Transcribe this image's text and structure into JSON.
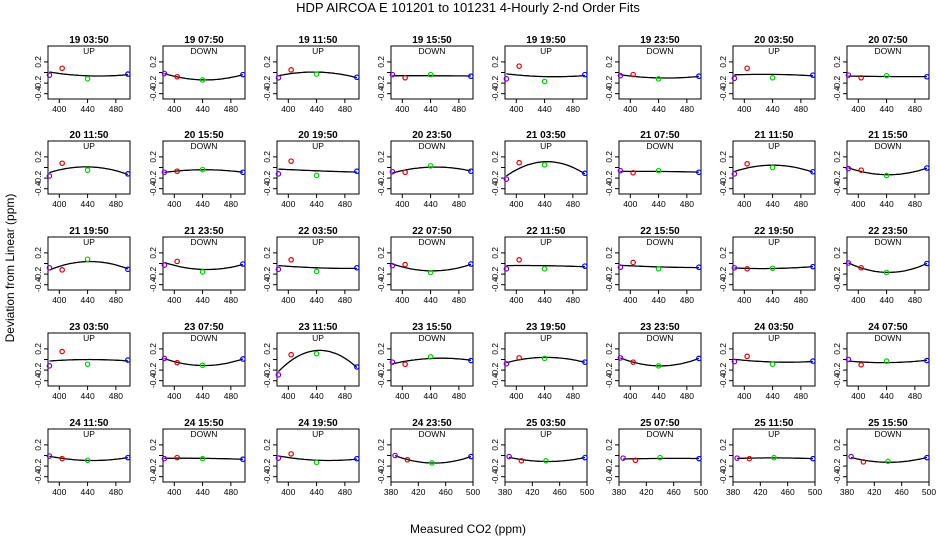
{
  "chart_data": {
    "type": "scatter",
    "title": "HDP   AIRCOA E   101201 to 101231   4-Hourly 2-nd Order Fits",
    "xlabel": "Measured CO2 (ppm)",
    "ylabel": "Deviation from Linear (ppm)",
    "ylim": [
      -0.5,
      0.5
    ],
    "y_ticks": [
      "0.2",
      "-0.2",
      "-0.4"
    ],
    "x_ticks_short": [
      "400",
      "440",
      "480"
    ],
    "x_ticks_long": [
      "380",
      "420",
      "460",
      "500"
    ],
    "point_colors": {
      "p1": "#7b00d4",
      "p2": "#e00000",
      "p3": "#00d000",
      "p4": "#0000ff",
      "fit": "#000000"
    },
    "panels": [
      {
        "label": "19 03:50",
        "dir": "UP",
        "pts": [
          [
            386,
            -0.05
          ],
          [
            404,
            0.08
          ],
          [
            440,
            -0.12
          ],
          [
            497,
            -0.03
          ]
        ]
      },
      {
        "label": "19 07:50",
        "dir": "DOWN",
        "pts": [
          [
            386,
            -0.02
          ],
          [
            404,
            -0.08
          ],
          [
            440,
            -0.14
          ],
          [
            497,
            -0.04
          ]
        ]
      },
      {
        "label": "19 11:50",
        "dir": "UP",
        "pts": [
          [
            386,
            -0.1
          ],
          [
            404,
            0.05
          ],
          [
            440,
            -0.03
          ],
          [
            497,
            -0.09
          ]
        ]
      },
      {
        "label": "19 15:50",
        "dir": "DOWN",
        "pts": [
          [
            386,
            -0.04
          ],
          [
            404,
            -0.1
          ],
          [
            440,
            -0.04
          ],
          [
            497,
            -0.07
          ]
        ]
      },
      {
        "label": "19 19:50",
        "dir": "UP",
        "pts": [
          [
            386,
            -0.12
          ],
          [
            404,
            0.12
          ],
          [
            440,
            -0.17
          ],
          [
            497,
            -0.04
          ]
        ]
      },
      {
        "label": "19 23:50",
        "dir": "DOWN",
        "pts": [
          [
            386,
            -0.06
          ],
          [
            404,
            -0.04
          ],
          [
            440,
            -0.12
          ],
          [
            497,
            -0.07
          ]
        ]
      },
      {
        "label": "20 03:50",
        "dir": "UP",
        "pts": [
          [
            386,
            -0.11
          ],
          [
            404,
            0.08
          ],
          [
            440,
            -0.1
          ],
          [
            497,
            -0.05
          ]
        ]
      },
      {
        "label": "20 07:50",
        "dir": "DOWN",
        "pts": [
          [
            386,
            -0.05
          ],
          [
            404,
            -0.1
          ],
          [
            440,
            -0.06
          ],
          [
            497,
            -0.08
          ]
        ]
      },
      {
        "label": "20 11:50",
        "dir": "UP",
        "pts": [
          [
            386,
            -0.16
          ],
          [
            404,
            0.08
          ],
          [
            440,
            -0.05
          ],
          [
            497,
            -0.12
          ]
        ]
      },
      {
        "label": "20 15:50",
        "dir": "DOWN",
        "pts": [
          [
            386,
            -0.09
          ],
          [
            404,
            -0.07
          ],
          [
            440,
            -0.04
          ],
          [
            497,
            -0.09
          ]
        ]
      },
      {
        "label": "20 19:50",
        "dir": "UP",
        "pts": [
          [
            386,
            -0.12
          ],
          [
            404,
            0.12
          ],
          [
            440,
            -0.15
          ],
          [
            497,
            -0.07
          ]
        ]
      },
      {
        "label": "20 23:50",
        "dir": "DOWN",
        "pts": [
          [
            386,
            -0.08
          ],
          [
            404,
            -0.09
          ],
          [
            440,
            0.03
          ],
          [
            497,
            -0.07
          ]
        ]
      },
      {
        "label": "21 03:50",
        "dir": "UP",
        "pts": [
          [
            386,
            -0.22
          ],
          [
            404,
            0.09
          ],
          [
            440,
            0.05
          ],
          [
            497,
            -0.11
          ]
        ]
      },
      {
        "label": "21 07:50",
        "dir": "DOWN",
        "pts": [
          [
            386,
            -0.06
          ],
          [
            404,
            -0.1
          ],
          [
            440,
            -0.06
          ],
          [
            497,
            -0.09
          ]
        ]
      },
      {
        "label": "21 11:50",
        "dir": "UP",
        "pts": [
          [
            386,
            -0.12
          ],
          [
            404,
            0.07
          ],
          [
            440,
            0.0
          ],
          [
            497,
            -0.08
          ]
        ]
      },
      {
        "label": "21 15:50",
        "dir": "DOWN",
        "pts": [
          [
            386,
            -0.02
          ],
          [
            404,
            -0.05
          ],
          [
            440,
            -0.15
          ],
          [
            497,
            -0.01
          ]
        ]
      },
      {
        "label": "21 19:50",
        "dir": "UP",
        "pts": [
          [
            386,
            -0.08
          ],
          [
            404,
            -0.12
          ],
          [
            440,
            0.08
          ],
          [
            497,
            -0.11
          ]
        ]
      },
      {
        "label": "21 23:50",
        "dir": "DOWN",
        "pts": [
          [
            386,
            -0.03
          ],
          [
            404,
            0.04
          ],
          [
            440,
            -0.16
          ],
          [
            497,
            -0.01
          ]
        ]
      },
      {
        "label": "22 03:50",
        "dir": "UP",
        "pts": [
          [
            386,
            -0.11
          ],
          [
            404,
            0.07
          ],
          [
            440,
            -0.15
          ],
          [
            497,
            -0.08
          ]
        ]
      },
      {
        "label": "22 07:50",
        "dir": "DOWN",
        "pts": [
          [
            386,
            -0.04
          ],
          [
            404,
            -0.02
          ],
          [
            440,
            -0.17
          ],
          [
            497,
            -0.01
          ]
        ]
      },
      {
        "label": "22 11:50",
        "dir": "UP",
        "pts": [
          [
            386,
            -0.1
          ],
          [
            404,
            0.07
          ],
          [
            440,
            -0.1
          ],
          [
            497,
            -0.05
          ]
        ]
      },
      {
        "label": "22 15:50",
        "dir": "DOWN",
        "pts": [
          [
            386,
            -0.07
          ],
          [
            404,
            0.02
          ],
          [
            440,
            -0.1
          ],
          [
            497,
            -0.07
          ]
        ]
      },
      {
        "label": "22 19:50",
        "dir": "UP",
        "pts": [
          [
            386,
            -0.08
          ],
          [
            404,
            -0.1
          ],
          [
            440,
            -0.09
          ],
          [
            497,
            -0.06
          ]
        ]
      },
      {
        "label": "22 23:50",
        "dir": "DOWN",
        "pts": [
          [
            386,
            0.01
          ],
          [
            404,
            -0.08
          ],
          [
            440,
            -0.17
          ],
          [
            497,
            0.0
          ]
        ]
      },
      {
        "label": "23 03:50",
        "dir": "UP",
        "pts": [
          [
            386,
            -0.12
          ],
          [
            404,
            0.15
          ],
          [
            440,
            -0.09
          ],
          [
            497,
            -0.01
          ]
        ]
      },
      {
        "label": "23 07:50",
        "dir": "DOWN",
        "pts": [
          [
            386,
            0.02
          ],
          [
            404,
            -0.06
          ],
          [
            440,
            -0.11
          ],
          [
            497,
            0.01
          ]
        ]
      },
      {
        "label": "23 11:50",
        "dir": "UP",
        "pts": [
          [
            386,
            -0.29
          ],
          [
            404,
            0.09
          ],
          [
            440,
            0.11
          ],
          [
            497,
            -0.14
          ]
        ]
      },
      {
        "label": "23 15:50",
        "dir": "DOWN",
        "pts": [
          [
            386,
            -0.05
          ],
          [
            404,
            -0.09
          ],
          [
            440,
            0.05
          ],
          [
            497,
            -0.02
          ]
        ]
      },
      {
        "label": "23 19:50",
        "dir": "UP",
        "pts": [
          [
            386,
            -0.08
          ],
          [
            404,
            0.03
          ],
          [
            440,
            0.02
          ],
          [
            497,
            -0.05
          ]
        ]
      },
      {
        "label": "23 23:50",
        "dir": "DOWN",
        "pts": [
          [
            386,
            0.03
          ],
          [
            404,
            -0.05
          ],
          [
            440,
            -0.12
          ],
          [
            497,
            0.02
          ]
        ]
      },
      {
        "label": "24 03:50",
        "dir": "UP",
        "pts": [
          [
            386,
            -0.04
          ],
          [
            404,
            0.06
          ],
          [
            440,
            -0.09
          ],
          [
            497,
            -0.03
          ]
        ]
      },
      {
        "label": "24 07:50",
        "dir": "DOWN",
        "pts": [
          [
            386,
            0.0
          ],
          [
            404,
            -0.1
          ],
          [
            440,
            -0.03
          ],
          [
            497,
            -0.02
          ]
        ]
      },
      {
        "label": "24 11:50",
        "dir": "UP",
        "pts": [
          [
            386,
            -0.01
          ],
          [
            404,
            -0.06
          ],
          [
            440,
            -0.09
          ],
          [
            497,
            -0.04
          ]
        ]
      },
      {
        "label": "24 15:50",
        "dir": "DOWN",
        "pts": [
          [
            386,
            -0.06
          ],
          [
            404,
            -0.04
          ],
          [
            440,
            -0.06
          ],
          [
            497,
            -0.07
          ]
        ]
      },
      {
        "label": "24 19:50",
        "dir": "UP",
        "pts": [
          [
            386,
            -0.05
          ],
          [
            404,
            0.03
          ],
          [
            440,
            -0.13
          ],
          [
            497,
            -0.06
          ]
        ]
      },
      {
        "label": "24 23:50",
        "dir": "DOWN",
        "pts": [
          [
            386,
            0.0
          ],
          [
            404,
            -0.08
          ],
          [
            440,
            -0.14
          ],
          [
            497,
            -0.02
          ]
        ]
      },
      {
        "label": "25 03:50",
        "dir": "UP",
        "pts": [
          [
            386,
            -0.02
          ],
          [
            404,
            -0.1
          ],
          [
            440,
            -0.1
          ],
          [
            497,
            -0.04
          ]
        ]
      },
      {
        "label": "25 07:50",
        "dir": "DOWN",
        "pts": [
          [
            386,
            -0.05
          ],
          [
            404,
            -0.09
          ],
          [
            440,
            -0.04
          ],
          [
            497,
            -0.06
          ]
        ]
      },
      {
        "label": "25 11:50",
        "dir": "UP",
        "pts": [
          [
            386,
            -0.05
          ],
          [
            404,
            -0.06
          ],
          [
            440,
            -0.04
          ],
          [
            497,
            -0.06
          ]
        ]
      },
      {
        "label": "25 15:50",
        "dir": "DOWN",
        "pts": [
          [
            386,
            -0.02
          ],
          [
            404,
            -0.12
          ],
          [
            440,
            -0.11
          ],
          [
            497,
            -0.04
          ]
        ]
      }
    ]
  }
}
